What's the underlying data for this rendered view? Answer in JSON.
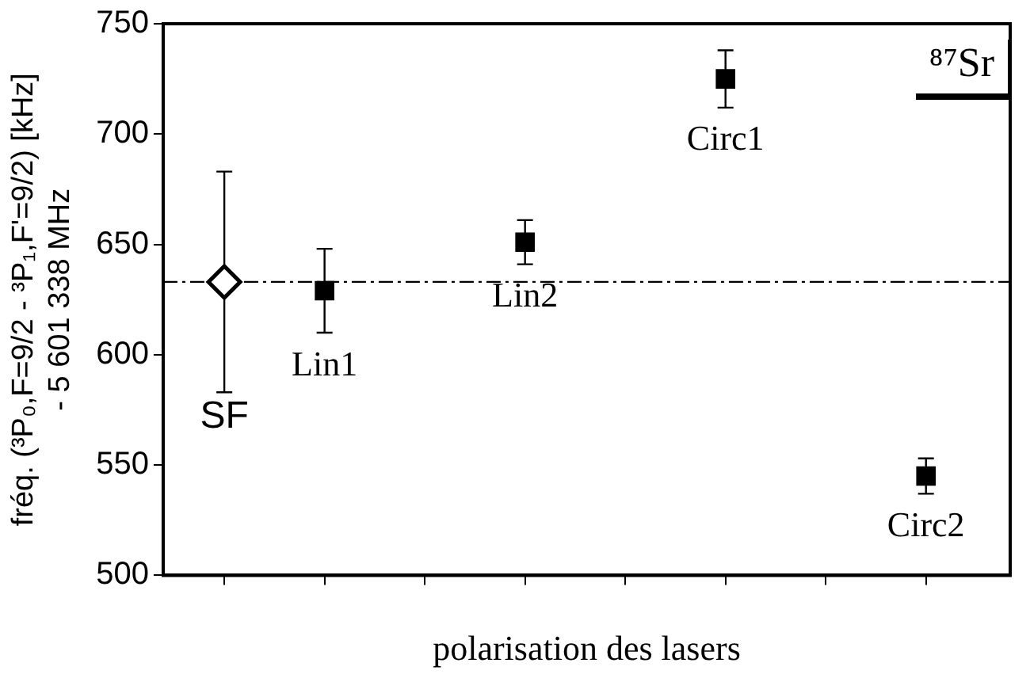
{
  "chart_data": {
    "type": "scatter",
    "ylabel": "fréq. (³P₀,F=9/2 - ³P₁,F'=9/2) [kHz]\n- 5 601 338 MHz",
    "xlabel": "polarisation des lasers",
    "categories": [
      null,
      null,
      null,
      null,
      null,
      null,
      null,
      null
    ],
    "ylim": [
      500,
      750
    ],
    "yticks": [
      500,
      550,
      600,
      650,
      700,
      750
    ],
    "grid": false,
    "legend": false,
    "series": [
      {
        "marker": "diamond",
        "color": "#000000",
        "values": [
          633,
          null,
          null,
          null,
          null,
          null,
          null,
          null
        ],
        "errors": [
          50,
          null,
          null,
          null,
          null,
          null,
          null,
          null
        ]
      },
      {
        "marker": "square",
        "color": "#000000",
        "values": [
          null,
          629,
          null,
          651,
          null,
          725,
          null,
          545
        ],
        "errors": [
          null,
          19,
          null,
          10,
          null,
          13,
          null,
          8
        ]
      }
    ],
    "ref_lines": [
      {
        "axis": "y",
        "value": 633,
        "line_style": "dashed",
        "color": "#000000"
      }
    ],
    "annotations": [
      {
        "text": "SF",
        "y": 583
      },
      {
        "text": "Lin1",
        "y": 610
      },
      {
        "text": "Lin2",
        "y": 641
      },
      {
        "text": "Circ1",
        "y": 712
      },
      {
        "text": "Circ2",
        "y": 537
      },
      "⁸⁷Sr"
    ]
  }
}
